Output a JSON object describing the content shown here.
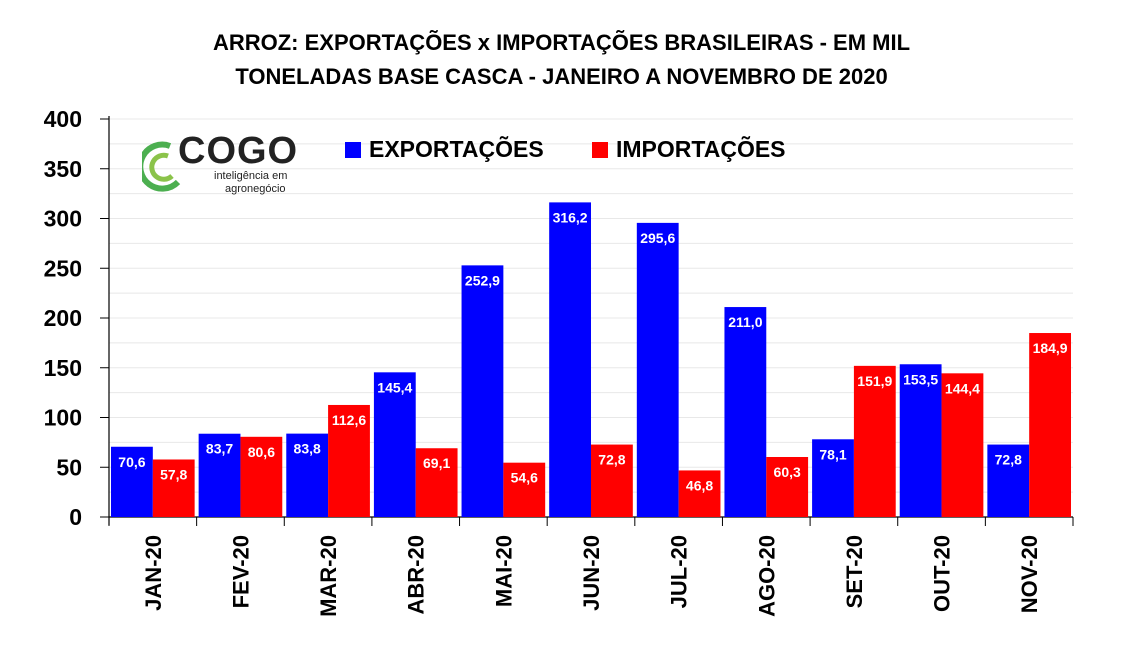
{
  "chart_data": {
    "type": "bar",
    "title": "ARROZ: EXPORTAÇÕES x IMPORTAÇÕES BRASILEIRAS - EM MIL",
    "subtitle": "TONELADAS BASE CASCA - JANEIRO A NOVEMBRO DE 2020",
    "xlabel": "",
    "ylabel": "",
    "ylim": [
      0,
      400
    ],
    "yticks": [
      "0",
      "50",
      "100",
      "150",
      "200",
      "250",
      "300",
      "350",
      "400"
    ],
    "grid": true,
    "legend_position": "top",
    "categories": [
      "JAN-20",
      "FEV-20",
      "MAR-20",
      "ABR-20",
      "MAI-20",
      "JUN-20",
      "JUL-20",
      "AGO-20",
      "SET-20",
      "OUT-20",
      "NOV-20"
    ],
    "series": [
      {
        "name": "EXPORTAÇÕES",
        "color": "#0000ff",
        "values": [
          70.6,
          83.7,
          83.8,
          145.4,
          252.9,
          316.2,
          295.6,
          211.0,
          78.1,
          153.5,
          72.8
        ],
        "labels": [
          "70,6",
          "83,7",
          "83,8",
          "145,4",
          "252,9",
          "316,2",
          "295,6",
          "211,0",
          "78,1",
          "153,5",
          "72,8"
        ]
      },
      {
        "name": "IMPORTAÇÕES",
        "color": "#ff0000",
        "values": [
          57.8,
          80.6,
          112.6,
          69.1,
          54.6,
          72.8,
          46.8,
          60.3,
          151.9,
          144.4,
          184.9
        ],
        "labels": [
          "57,8",
          "80,6",
          "112,6",
          "69,1",
          "54,6",
          "72,8",
          "46,8",
          "60,3",
          "151,9",
          "144,4",
          "184,9"
        ]
      }
    ]
  },
  "logo": {
    "word": "COGO",
    "line1": "inteligência em",
    "line2": "agronegócio"
  }
}
